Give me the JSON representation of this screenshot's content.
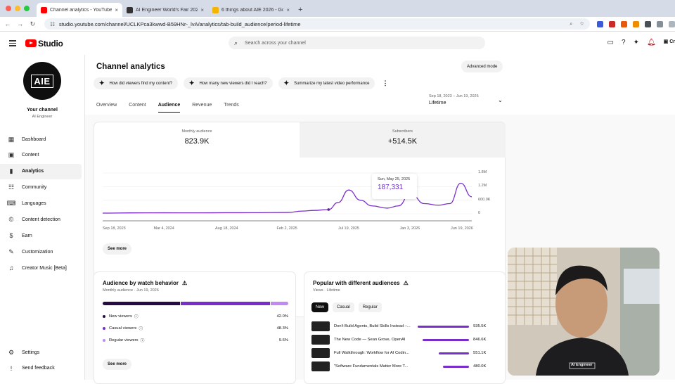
{
  "browser": {
    "tabs": [
      {
        "title": "Channel analytics - YouTube",
        "active": true,
        "favicon_color": "#ff0000"
      },
      {
        "title": "AI Engineer World's Fair 2026",
        "active": false,
        "favicon_color": "#333333"
      },
      {
        "title": "6 things about AIE 2026 - Go",
        "active": false,
        "favicon_color": "#f4b400"
      }
    ],
    "url": "studio.youtube.com/channel/UCLKPca3kwwd-B59HNr-_lvA/analytics/tab-build_audience/period-lifetime",
    "new_tab": "+"
  },
  "header": {
    "logo_text": "Studio",
    "search_placeholder": "Search across your channel",
    "create_label": "Cr"
  },
  "sidebar": {
    "avatar_text": "AIE",
    "channel_title": "Your channel",
    "channel_name": "AI Engineer",
    "items": [
      {
        "label": "Dashboard",
        "icon": "dashboard-icon",
        "glyph": "▦"
      },
      {
        "label": "Content",
        "icon": "content-icon",
        "glyph": "▣"
      },
      {
        "label": "Analytics",
        "icon": "analytics-icon",
        "glyph": "▮",
        "active": true
      },
      {
        "label": "Community",
        "icon": "community-icon",
        "glyph": "☷"
      },
      {
        "label": "Languages",
        "icon": "languages-icon",
        "glyph": "⌨"
      },
      {
        "label": "Content detection",
        "icon": "copyright-icon",
        "glyph": "©"
      },
      {
        "label": "Earn",
        "icon": "earn-icon",
        "glyph": "$"
      },
      {
        "label": "Customization",
        "icon": "customization-icon",
        "glyph": "✎"
      },
      {
        "label": "Creator Music [Beta]",
        "icon": "music-icon",
        "glyph": "♫"
      }
    ],
    "bottom": [
      {
        "label": "Settings",
        "icon": "gear-icon",
        "glyph": "⚙"
      },
      {
        "label": "Send feedback",
        "icon": "feedback-icon",
        "glyph": "!"
      }
    ]
  },
  "page": {
    "title": "Channel analytics",
    "advanced_mode": "Advanced mode",
    "chips": [
      "How did viewers find my content?",
      "How many new viewers did I reach?",
      "Summarize my latest video performance"
    ],
    "tabs": [
      "Overview",
      "Content",
      "Audience",
      "Revenue",
      "Trends"
    ],
    "active_tab": "Audience",
    "period_dates": "Sep 18, 2023 – Jun 19, 2026",
    "period_label": "Lifetime"
  },
  "overview_card": {
    "kpis": [
      {
        "label": "Monthly audience",
        "value": "823.9K"
      },
      {
        "label": "Subscribers",
        "value": "+514.5K"
      }
    ],
    "tooltip": {
      "date": "Sun, May 25, 2025",
      "value": "187,331"
    },
    "see_more": "See more"
  },
  "chart_data": {
    "type": "line",
    "series": [
      {
        "values": [
          [
            "2023-09-18",
            30000
          ],
          [
            "2023-12-01",
            40000
          ],
          [
            "2024-03-04",
            45000
          ],
          [
            "2024-06-01",
            42000
          ],
          [
            "2024-08-18",
            48000
          ],
          [
            "2024-11-01",
            50000
          ],
          [
            "2025-02-03",
            60000
          ],
          [
            "2025-03-15",
            120000
          ],
          [
            "2025-04-15",
            150000
          ],
          [
            "2025-05-25",
            187331
          ],
          [
            "2025-06-20",
            500000
          ],
          [
            "2025-07-19",
            1050000
          ],
          [
            "2025-08-20",
            600000
          ],
          [
            "2025-09-20",
            350000
          ],
          [
            "2025-11-01",
            250000
          ],
          [
            "2025-12-01",
            350000
          ],
          [
            "2026-01-03",
            900000
          ],
          [
            "2026-02-10",
            450000
          ],
          [
            "2026-03-20",
            380000
          ],
          [
            "2026-04-20",
            450000
          ],
          [
            "2026-05-20",
            1350000
          ],
          [
            "2026-06-19",
            750000
          ]
        ]
      }
    ],
    "x_ticks": [
      "Sep 18, 2023",
      "Mar 4, 2024",
      "Aug 18, 2024",
      "Feb 2, 2025",
      "Jul 19, 2025",
      "Jan 3, 2026",
      "Jun 19, 2026"
    ],
    "y_ticks": [
      "1.8M",
      "1.2M",
      "600.0K",
      "0"
    ],
    "ylim": [
      0,
      1800000
    ],
    "color": "#7a2ec9"
  },
  "watch_behavior": {
    "title": "Audience by watch behavior",
    "subtitle": "Monthly audience · Jun 19, 2026",
    "segments": [
      {
        "label": "New viewers",
        "value": "42.0%",
        "fraction": 0.42,
        "color": "#2a0a45"
      },
      {
        "label": "Casual viewers",
        "value": "48.3%",
        "fraction": 0.483,
        "color": "#7a2ec9"
      },
      {
        "label": "Regular viewers",
        "value": "9.6%",
        "fraction": 0.096,
        "color": "#c08af0"
      }
    ],
    "see_more": "See more"
  },
  "popular": {
    "title": "Popular with different audiences",
    "subtitle": "Views · Lifetime",
    "filters": [
      "New",
      "Casual",
      "Regular"
    ],
    "active_filter": "New",
    "videos": [
      {
        "title": "Don't Build Agents, Build Skills Instead –...",
        "views": "935.5K",
        "fraction": 1.0
      },
      {
        "title": "The New Code — Sean Grove, OpenAI",
        "views": "846.6K",
        "fraction": 0.905
      },
      {
        "title": "Full Walkthrough: Workflow for AI Codin...",
        "views": "551.1K",
        "fraction": 0.589
      },
      {
        "title": "\"Software Fundamentals Matter More T...",
        "views": "480.0K",
        "fraction": 0.513
      }
    ]
  },
  "webcam": {
    "shirt_text": "AI Engineer"
  }
}
